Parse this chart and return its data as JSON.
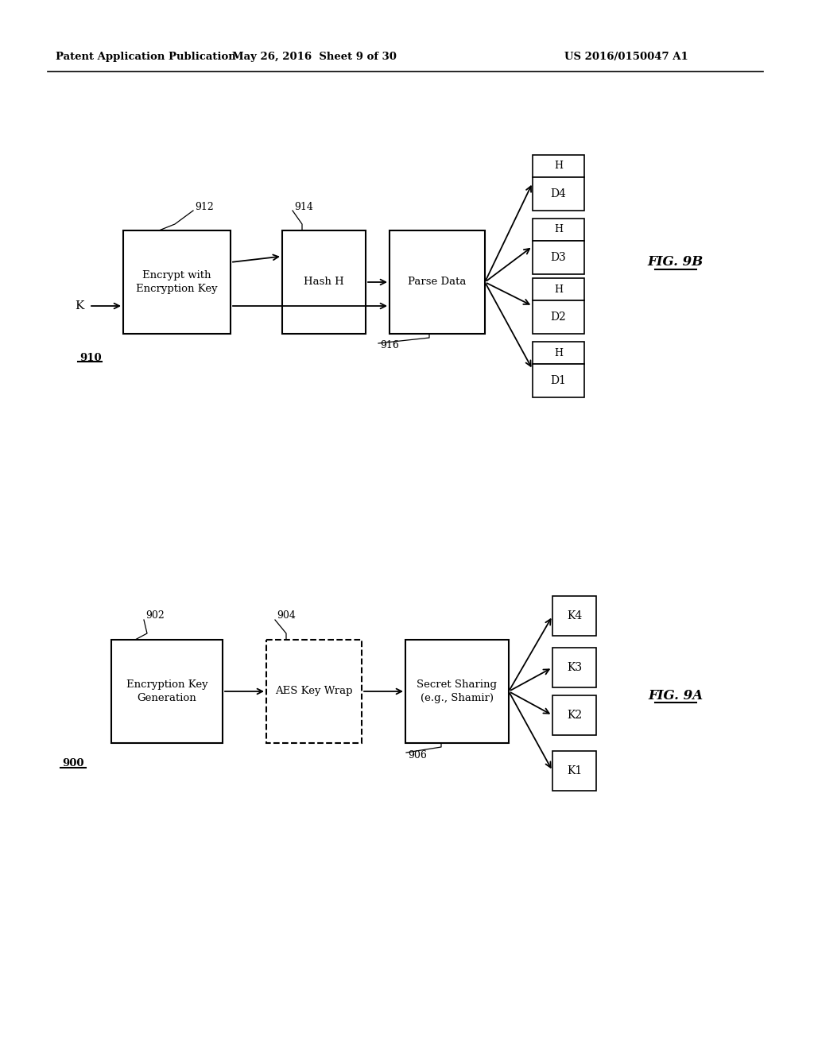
{
  "bg_color": "#ffffff",
  "header_left": "Patent Application Publication",
  "header_mid": "May 26, 2016  Sheet 9 of 30",
  "header_right": "US 2016/0150047 A1",
  "fig9b_label": "FIG. 9B",
  "fig9a_label": "FIG. 9A",
  "fig9b_main_ref": "910",
  "fig9b_box1_label": "Encrypt with\nEncryption Key",
  "fig9b_box1_ref": "912",
  "fig9b_box2_label": "Hash H",
  "fig9b_box2_ref": "914",
  "fig9b_box3_label": "Parse Data",
  "fig9b_box3_ref": "916",
  "fig9b_k_label": "K",
  "fig9b_outputs": [
    "D4",
    "D3",
    "D2",
    "D1"
  ],
  "fig9a_main_ref": "900",
  "fig9a_box1_label": "Encryption Key\nGeneration",
  "fig9a_box1_ref": "902",
  "fig9a_box2_label": "AES Key Wrap",
  "fig9a_box2_ref": "904",
  "fig9a_box3_label": "Secret Sharing\n(e.g., Shamir)",
  "fig9a_box3_ref": "906",
  "fig9a_outputs": [
    "K4",
    "K3",
    "K2",
    "K1"
  ]
}
